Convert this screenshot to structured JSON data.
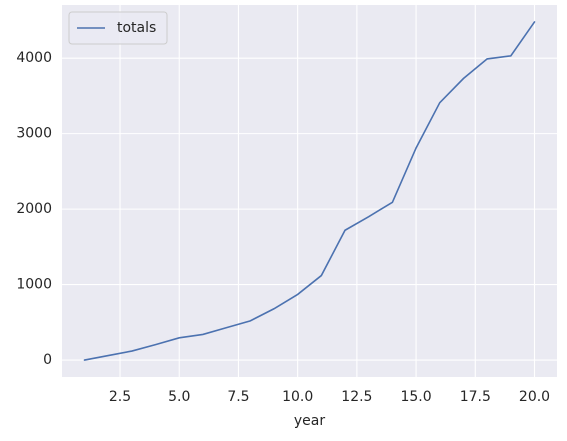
{
  "chart_data": {
    "type": "line",
    "x": [
      1,
      2,
      3,
      4,
      5,
      6,
      7,
      8,
      9,
      10,
      11,
      12,
      13,
      14,
      15,
      16,
      17,
      18,
      19,
      20
    ],
    "series": [
      {
        "name": "totals",
        "color": "#4c72b0",
        "values": [
          0,
          60,
          120,
          205,
          295,
          340,
          430,
          520,
          680,
          870,
          1120,
          1720,
          1900,
          2090,
          2810,
          3410,
          3730,
          3990,
          4030,
          4480
        ]
      }
    ],
    "xlabel": "year",
    "xlim": [
      0.05,
      20.95
    ],
    "xticks": [
      2.5,
      {
        "value": 5,
        "label": "5.0"
      },
      7.5,
      {
        "value": 10,
        "label": "10.0"
      },
      12.5,
      {
        "value": 15,
        "label": "15.0"
      },
      17.5,
      {
        "value": 20,
        "label": "20.0"
      }
    ],
    "ylim": [
      -224,
      4704
    ],
    "yticks": [
      0,
      1000,
      2000,
      3000,
      4000
    ],
    "grid": true,
    "legend": "upper left"
  }
}
